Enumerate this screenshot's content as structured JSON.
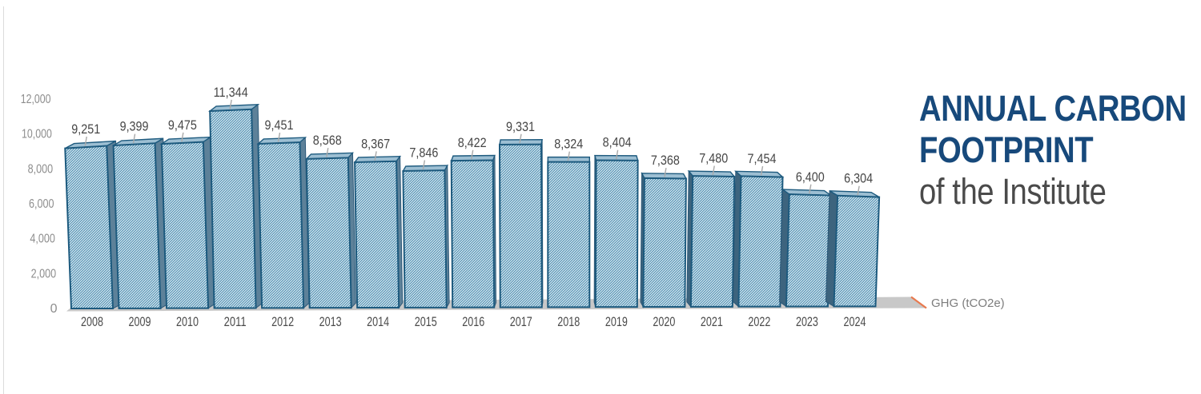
{
  "title": {
    "line1": "ANNUAL CARBON",
    "line2": "FOOTPRINT",
    "line3": "of the Institute"
  },
  "colors": {
    "title_navy": "#17497b",
    "title_gray": "#4a4a4a",
    "hatch_line": "#4288ad",
    "bar_face_bg": "#eef5f9",
    "bar_border": "#1d5a7e",
    "side_face_light": "#5d8199",
    "side_face_dark": "#3d647e",
    "top_face": "#9dbfd3",
    "floor_gray": "#c8c8c8",
    "floor_edge_orange": "#e8794e",
    "value_label": "#454545",
    "year_label": "#4a4a4a",
    "axis_label": "#8d8d8d",
    "ghg_label": "#7d7d7d",
    "tick_mark": "#a9a9a9",
    "edge_line": "#dcdcdc"
  },
  "chart_data": {
    "type": "bar",
    "title": "Annual Carbon Footprint of the Institute",
    "xlabel": "",
    "ylabel": "GHG (tCO2e)",
    "axis_note": "GHG (tCO2e)",
    "categories": [
      "2008",
      "2009",
      "2010",
      "2011",
      "2012",
      "2013",
      "2014",
      "2015",
      "2016",
      "2017",
      "2018",
      "2019",
      "2020",
      "2021",
      "2022",
      "2023",
      "2024"
    ],
    "values": [
      9251,
      9399,
      9475,
      11344,
      9451,
      8568,
      8367,
      7846,
      8422,
      9331,
      8324,
      8404,
      7368,
      7480,
      7454,
      6400,
      6304
    ],
    "value_labels": [
      "9,251",
      "9,399",
      "9,475",
      "11,344",
      "9,451",
      "8,568",
      "8,367",
      "7,846",
      "8,422",
      "9,331",
      "8,324",
      "8,404",
      "7,368",
      "7,480",
      "7,454",
      "6,400",
      "6,304"
    ],
    "ylim": [
      0,
      12000
    ],
    "yticks": [
      0,
      2000,
      4000,
      6000,
      8000,
      10000,
      12000
    ],
    "ytick_labels": [
      "0",
      "2,000",
      "4,000",
      "6,000",
      "8,000",
      "10,000",
      "12,000"
    ],
    "grid": false,
    "legend": false,
    "style": "3d-perspective hatched bars"
  }
}
